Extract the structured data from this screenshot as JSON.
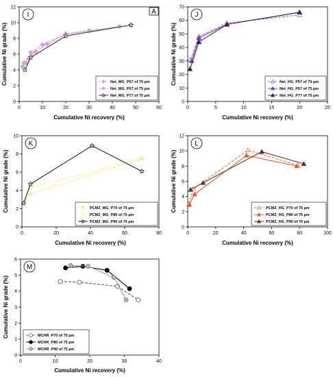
{
  "figure_corner_label": "A",
  "chart_data": [
    {
      "panel": "I",
      "type": "line",
      "xlabel": "Cumulative Ni recovery (%)",
      "ylabel": "Cumulative Ni grade (%)",
      "xlim": [
        0,
        60
      ],
      "ylim": [
        0,
        12
      ],
      "xticks": [
        0,
        10,
        20,
        30,
        40,
        50,
        60
      ],
      "yticks": [
        0,
        2,
        4,
        6,
        8,
        10,
        12
      ],
      "legend_position": "bottom-right",
      "series": [
        {
          "name": "Net_MG_P57 of 75 µm",
          "color": "#c7a8d6",
          "dash": "4,2",
          "marker": "diamond",
          "filled": true,
          "points": [
            [
              1.5,
              4.4
            ],
            [
              3,
              4.9
            ],
            [
              5,
              6.2
            ],
            [
              10,
              7.2
            ],
            [
              20,
              8.6
            ],
            [
              30,
              9.0
            ],
            [
              43,
              9.5
            ],
            [
              48,
              9.7
            ]
          ]
        },
        {
          "name": "Net_MG_P67 of 75 µm",
          "color": "#d9a3d9",
          "dash": "",
          "marker": "diamond",
          "filled": true,
          "points": [
            [
              2,
              4.9
            ],
            [
              4,
              5.4
            ],
            [
              7,
              6.3
            ],
            [
              12,
              7.3
            ],
            [
              20,
              8.5
            ],
            [
              48,
              9.7
            ]
          ]
        },
        {
          "name": "Net_MG_P77 of 75 µm",
          "color": "#333333",
          "dash": "",
          "marker": "star",
          "filled": false,
          "points": [
            [
              2.5,
              4.0
            ],
            [
              5,
              5.6
            ],
            [
              20,
              8.3
            ],
            [
              48,
              9.7
            ]
          ]
        }
      ]
    },
    {
      "panel": "J",
      "type": "line",
      "xlabel": "Cumulative Ni recovery (%)",
      "ylabel": "Cumulative Ni grade (%)",
      "xlim": [
        0,
        25
      ],
      "ylim": [
        0,
        70
      ],
      "xticks": [
        0,
        5,
        10,
        15,
        20,
        25
      ],
      "yticks": [
        0,
        10,
        20,
        30,
        40,
        50,
        60,
        70
      ],
      "legend_position": "bottom-right",
      "series": [
        {
          "name": "Net_HG_P57 of 75 µm",
          "color": "#9966cc",
          "dash": "4,2",
          "marker": "triangle",
          "filled": false,
          "points": [
            [
              0.5,
              31
            ],
            [
              2,
              48
            ],
            [
              7,
              58
            ],
            [
              20,
              64
            ]
          ]
        },
        {
          "name": "Net_HG_P67 of 75 µm",
          "color": "#7a3fa0",
          "dash": "",
          "marker": "triangle",
          "filled": true,
          "points": [
            [
              0.7,
              30
            ],
            [
              2,
              47
            ],
            [
              7,
              57
            ],
            [
              20,
              66
            ]
          ]
        },
        {
          "name": "Net_HG_P77 of 75 µm",
          "color": "#3a1f55",
          "dash": "",
          "marker": "triangle",
          "filled": true,
          "points": [
            [
              0.4,
              24
            ],
            [
              2,
              44
            ],
            [
              7,
              57
            ],
            [
              20,
              66
            ]
          ]
        }
      ]
    },
    {
      "panel": "K",
      "type": "line",
      "xlabel": "Cumulative Ni recovery (%)",
      "ylabel": "Cumulative Ni grade (%)",
      "xlim": [
        0,
        80
      ],
      "ylim": [
        0,
        10
      ],
      "xticks": [
        0,
        20,
        40,
        60,
        80
      ],
      "yticks": [
        0,
        2,
        4,
        6,
        8,
        10
      ],
      "legend_position": "bottom-right",
      "series": [
        {
          "name": "PCMZ_MG_P70 of 75 µm",
          "color": "#f5e88a",
          "dash": "4,2",
          "marker": "star",
          "filled": true,
          "points": [
            [
              1,
              2.6
            ],
            [
              5,
              3.6
            ],
            [
              70,
              7.5
            ]
          ]
        },
        {
          "name": "PCMZ_MG_P80 of 75 µm",
          "color": "#fff4a0",
          "dash": "",
          "marker": "star",
          "filled": true,
          "points": [
            [
              1,
              2.6
            ],
            [
              5,
              4.3
            ],
            [
              68,
              7.4
            ]
          ]
        },
        {
          "name": "PCMZ_MG_P90 of 75 µm",
          "color": "#222222",
          "dash": "",
          "marker": "star",
          "filled": false,
          "points": [
            [
              1,
              2.6
            ],
            [
              5,
              4.7
            ],
            [
              41,
              8.9
            ],
            [
              70,
              6.1
            ]
          ]
        }
      ]
    },
    {
      "panel": "L",
      "type": "line",
      "xlabel": "Cumulative Ni recovery (%)",
      "ylabel": "Cumulative Ni grade (%)",
      "xlim": [
        0,
        100
      ],
      "ylim": [
        0,
        12
      ],
      "xticks": [
        0,
        20,
        40,
        60,
        80,
        100
      ],
      "yticks": [
        0,
        2,
        4,
        6,
        8,
        10,
        12
      ],
      "legend_position": "bottom-right",
      "series": [
        {
          "name": "PCMZ_HG_P70 of 75 µm",
          "color": "#e07a40",
          "dash": "4,2",
          "marker": "triangle",
          "filled": false,
          "points": [
            [
              1,
              3.1
            ],
            [
              4,
              5.0
            ],
            [
              43,
              10.1
            ],
            [
              79,
              8.1
            ]
          ]
        },
        {
          "name": "PCMZ_HG_P80 of 75 µm",
          "color": "#d9622b",
          "dash": "",
          "marker": "triangle",
          "filled": true,
          "points": [
            [
              1,
              2.9
            ],
            [
              5,
              4.3
            ],
            [
              42,
              9.4
            ],
            [
              78,
              8.0
            ]
          ]
        },
        {
          "name": "PCMZ_HG_P90 of 75 µm",
          "color": "#5a3422",
          "dash": "",
          "marker": "triangle",
          "filled": true,
          "points": [
            [
              2,
              4.9
            ],
            [
              11,
              5.8
            ],
            [
              53,
              9.9
            ],
            [
              83,
              8.3
            ]
          ]
        }
      ]
    },
    {
      "panel": "M",
      "type": "line",
      "xlabel": "Cumulative Ni recovery (%)",
      "ylabel": "Cumulative Ni grade (%)",
      "xlim": [
        0,
        40
      ],
      "ylim": [
        0,
        6
      ],
      "xticks": [
        0,
        10,
        20,
        30,
        40
      ],
      "yticks": [
        0,
        1,
        2,
        3,
        4,
        5,
        6
      ],
      "legend_position": "bottom-left",
      "series": [
        {
          "name": "MCHR_P70 of 75 µm",
          "color": "#555555",
          "dash": "4,2",
          "marker": "circle",
          "filled": false,
          "fill": "#ffffff",
          "points": [
            [
              11.5,
              4.6
            ],
            [
              17,
              4.55
            ],
            [
              28,
              4.3
            ],
            [
              34,
              3.45
            ]
          ]
        },
        {
          "name": "MCHR_P80 of 75 µm",
          "color": "#000000",
          "dash": "",
          "marker": "circle",
          "filled": true,
          "fill": "#000000",
          "points": [
            [
              13,
              5.45
            ],
            [
              18,
              5.55
            ],
            [
              25,
              5.3
            ],
            [
              31.5,
              4.15
            ]
          ]
        },
        {
          "name": "MCHR_P90 of 75 µm",
          "color": "#9a9a9a",
          "dash": "",
          "marker": "circle",
          "filled": true,
          "fill": "#b5b5b5",
          "points": [
            [
              14.5,
              5.6
            ],
            [
              19.5,
              5.55
            ],
            [
              27,
              4.85
            ],
            [
              30.5,
              3.45
            ]
          ]
        }
      ]
    }
  ]
}
